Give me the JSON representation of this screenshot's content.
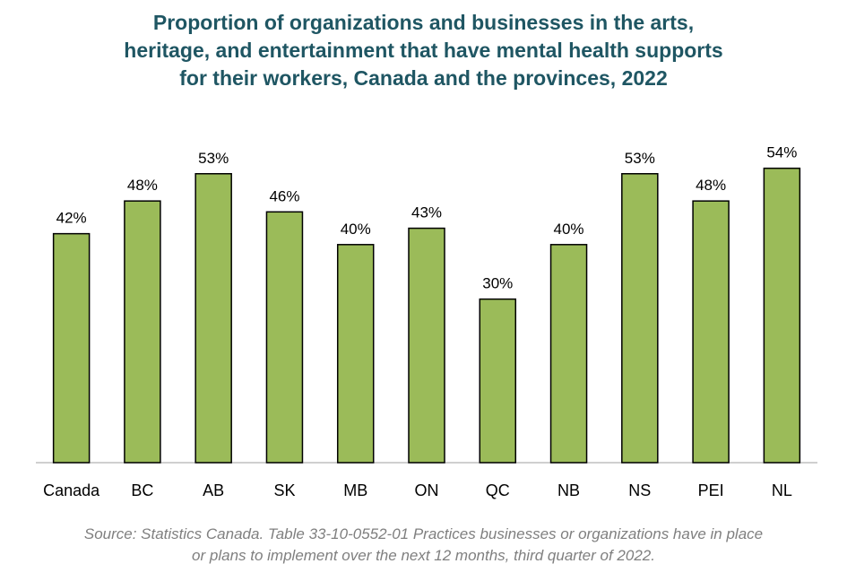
{
  "title_lines": [
    "Proportion of organizations and businesses in the arts,",
    "heritage, and entertainment that have mental health supports",
    "for their workers, Canada and the provinces, 2022"
  ],
  "source_lines": [
    "Source: Statistics Canada. Table 33-10-0552-01  Practices businesses or organizations have in place",
    "or plans to implement over the next 12 months, third quarter of 2022."
  ],
  "colors": {
    "bar": "#9bbb59",
    "bar_edge": "#000000",
    "title": "#1f5663",
    "axis": "#bfbfbf",
    "text": "#000000",
    "source": "#7f7f7f"
  },
  "chart_data": {
    "type": "bar",
    "title": "Proportion of organizations and businesses in the arts, heritage, and entertainment that have mental health supports for their workers, Canada and the provinces, 2022",
    "categories": [
      "Canada",
      "BC",
      "AB",
      "SK",
      "MB",
      "ON",
      "QC",
      "NB",
      "NS",
      "PEI",
      "NL"
    ],
    "values": [
      42,
      48,
      53,
      46,
      40,
      43,
      30,
      40,
      53,
      48,
      54
    ],
    "data_labels": [
      "42%",
      "48%",
      "53%",
      "46%",
      "40%",
      "43%",
      "30%",
      "40%",
      "53%",
      "48%",
      "54%"
    ],
    "xlabel": "",
    "ylabel": "",
    "ylim": [
      0,
      60
    ],
    "grid": false,
    "legend": "none"
  }
}
